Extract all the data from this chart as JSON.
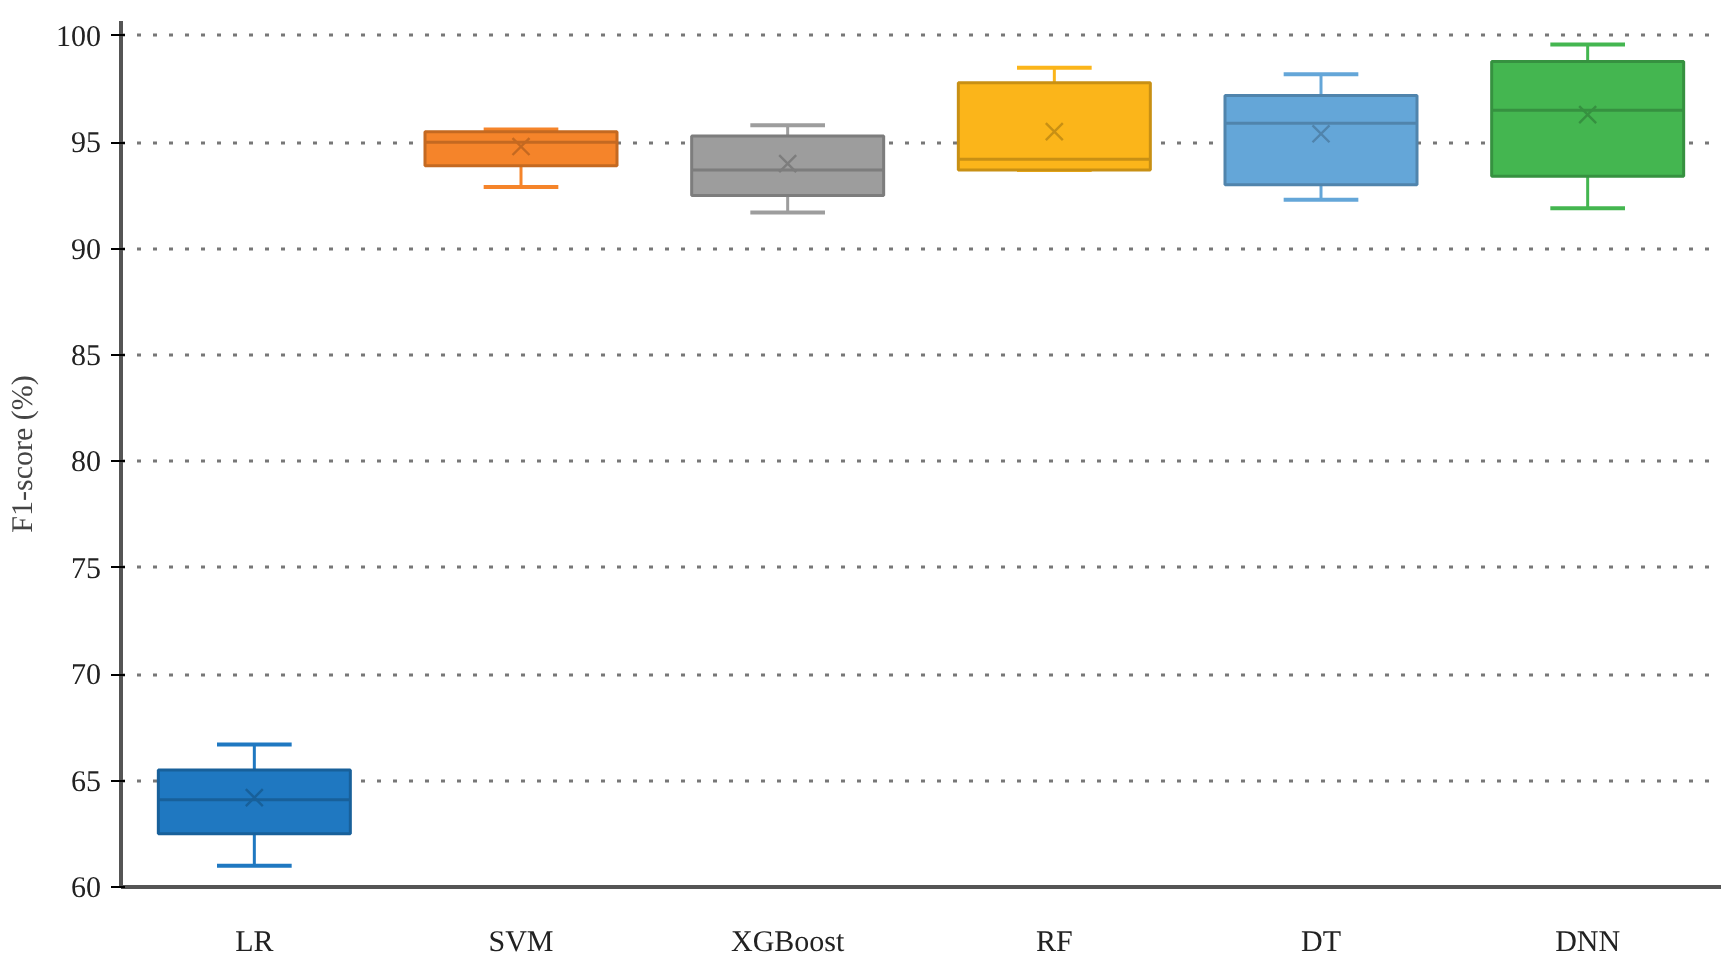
{
  "chart_data": {
    "type": "box",
    "ylabel": "F1-score (%)",
    "categories": [
      "LR",
      "SVM",
      "XGBoost",
      "RF",
      "DT",
      "DNN"
    ],
    "colors": [
      "#1f78c1",
      "#f5842a",
      "#9d9d9d",
      "#fbb51a",
      "#64a6d8",
      "#44b650"
    ],
    "boxes": [
      {
        "low": 61.0,
        "q1": 62.5,
        "median": 64.1,
        "q3": 65.5,
        "high": 66.7,
        "mean": 64.2
      },
      {
        "low": 92.9,
        "q1": 93.9,
        "median": 95.0,
        "q3": 95.5,
        "high": 95.6,
        "mean": 94.8
      },
      {
        "low": 91.7,
        "q1": 92.5,
        "median": 93.7,
        "q3": 95.3,
        "high": 95.8,
        "mean": 94.0
      },
      {
        "low": 93.7,
        "q1": 93.7,
        "median": 94.2,
        "q3": 97.8,
        "high": 98.5,
        "mean": 95.5
      },
      {
        "low": 92.3,
        "q1": 93.0,
        "median": 95.9,
        "q3": 97.2,
        "high": 98.2,
        "mean": 95.4
      },
      {
        "low": 91.9,
        "q1": 93.4,
        "median": 96.5,
        "q3": 98.8,
        "high": 99.6,
        "mean": 96.3
      }
    ],
    "ylim": [
      60,
      100.7
    ],
    "yticks": [
      60,
      65,
      70,
      75,
      80,
      85,
      90,
      95,
      100
    ],
    "grid": "y"
  }
}
